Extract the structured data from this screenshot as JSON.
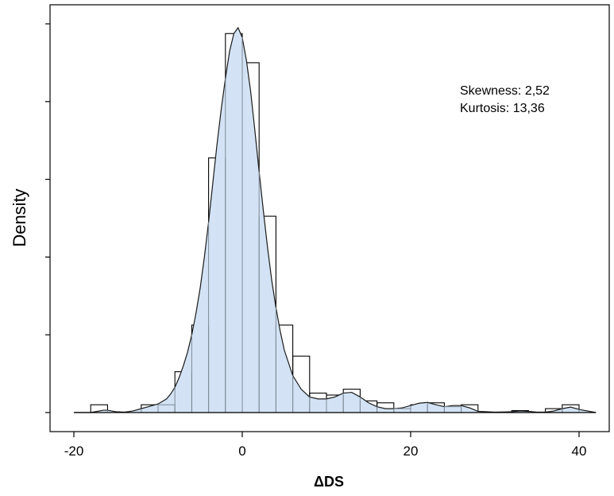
{
  "chart_data": {
    "type": "bar",
    "subtype": "histogram-with-density",
    "xlabel": "ΔDS",
    "ylabel": "Density",
    "xlim": [
      -22,
      47
    ],
    "xticks": [
      -20,
      0,
      20,
      40
    ],
    "ylim": [
      0,
      1.05
    ],
    "y_tick_labels_shown": false,
    "grid": false,
    "bin_width": 2,
    "bins": [
      {
        "x0": -18,
        "x1": -16,
        "value": 0.02
      },
      {
        "x0": -16,
        "x1": -14,
        "value": 0.0
      },
      {
        "x0": -14,
        "x1": -12,
        "value": 0.0
      },
      {
        "x0": -12,
        "x1": -10,
        "value": 0.02
      },
      {
        "x0": -10,
        "x1": -8,
        "value": 0.02
      },
      {
        "x0": -8,
        "x1": -6,
        "value": 0.105
      },
      {
        "x0": -6,
        "x1": -4,
        "value": 0.225
      },
      {
        "x0": -4,
        "x1": -2,
        "value": 0.655
      },
      {
        "x0": -2,
        "x1": 0,
        "value": 0.975
      },
      {
        "x0": 0,
        "x1": 2,
        "value": 0.9
      },
      {
        "x0": 2,
        "x1": 4,
        "value": 0.505
      },
      {
        "x0": 4,
        "x1": 6,
        "value": 0.225
      },
      {
        "x0": 6,
        "x1": 8,
        "value": 0.145
      },
      {
        "x0": 8,
        "x1": 10,
        "value": 0.05
      },
      {
        "x0": 10,
        "x1": 12,
        "value": 0.045
      },
      {
        "x0": 12,
        "x1": 14,
        "value": 0.06
      },
      {
        "x0": 14,
        "x1": 16,
        "value": 0.03
      },
      {
        "x0": 16,
        "x1": 18,
        "value": 0.025
      },
      {
        "x0": 18,
        "x1": 20,
        "value": 0.01
      },
      {
        "x0": 20,
        "x1": 22,
        "value": 0.02
      },
      {
        "x0": 22,
        "x1": 24,
        "value": 0.025
      },
      {
        "x0": 24,
        "x1": 26,
        "value": 0.015
      },
      {
        "x0": 26,
        "x1": 28,
        "value": 0.02
      },
      {
        "x0": 32,
        "x1": 34,
        "value": 0.005
      },
      {
        "x0": 36,
        "x1": 38,
        "value": 0.01
      },
      {
        "x0": 38,
        "x1": 40,
        "value": 0.02
      }
    ],
    "density_curve": {
      "x": [
        -20,
        -18,
        -17.5,
        -17,
        -16.5,
        -16,
        -15.5,
        -15,
        -14,
        -13,
        -12,
        -11,
        -10,
        -9,
        -8.5,
        -8,
        -7.5,
        -7,
        -6.5,
        -6,
        -5.5,
        -5,
        -4.5,
        -4,
        -3.5,
        -3,
        -2.5,
        -2,
        -1.5,
        -1,
        -0.5,
        0,
        0.5,
        1,
        1.5,
        2,
        2.5,
        3,
        3.5,
        4,
        4.5,
        5,
        6,
        7,
        8,
        9,
        10,
        11,
        12,
        13,
        14,
        15,
        16,
        17,
        18,
        19,
        20,
        21,
        22,
        23,
        24,
        25,
        26,
        27,
        28,
        30,
        32,
        33,
        34,
        35,
        36,
        37,
        38,
        39,
        40,
        42
      ],
      "y": [
        0,
        0,
        0.002,
        0.004,
        0.006,
        0.006,
        0.004,
        0.002,
        0.001,
        0.004,
        0.01,
        0.016,
        0.022,
        0.035,
        0.048,
        0.065,
        0.09,
        0.12,
        0.155,
        0.2,
        0.255,
        0.32,
        0.4,
        0.49,
        0.59,
        0.69,
        0.78,
        0.86,
        0.93,
        0.975,
        0.99,
        0.965,
        0.905,
        0.825,
        0.725,
        0.62,
        0.52,
        0.425,
        0.34,
        0.27,
        0.21,
        0.16,
        0.095,
        0.06,
        0.04,
        0.035,
        0.035,
        0.04,
        0.05,
        0.052,
        0.04,
        0.025,
        0.015,
        0.01,
        0.01,
        0.012,
        0.018,
        0.024,
        0.026,
        0.02,
        0.015,
        0.018,
        0.018,
        0.012,
        0.003,
        0.001,
        0.002,
        0.004,
        0.003,
        0.001,
        0.001,
        0.004,
        0.01,
        0.014,
        0.008,
        0
      ]
    },
    "annotations": [
      "Skewness: 2,52",
      "Kurtosis: 13,36"
    ],
    "colors": {
      "density_fill": "#d3e3f5",
      "bin_stroke_over_fill": "#7f8a96",
      "bin_stroke": "#000000"
    }
  }
}
